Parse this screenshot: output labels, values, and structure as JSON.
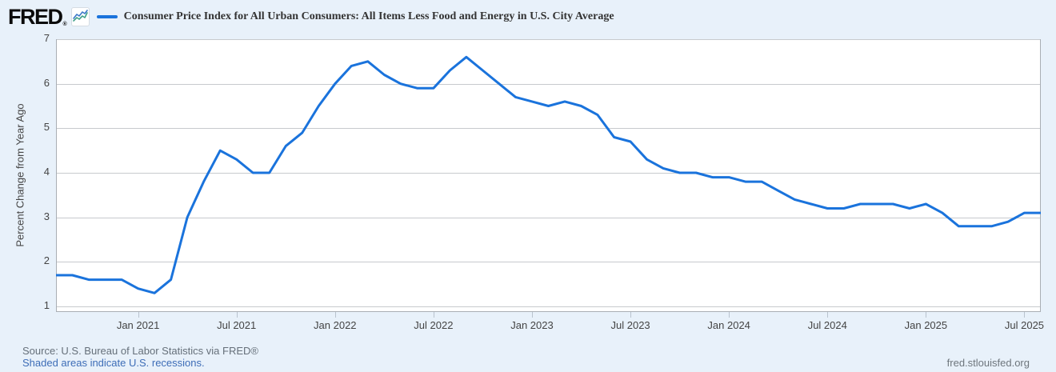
{
  "header": {
    "logo_text": "FRED",
    "registered_mark": "®",
    "title": "Consumer Price Index for All Urban Consumers: All Items Less Food and Energy in U.S. City Average"
  },
  "chart_data": {
    "type": "line",
    "title": "Consumer Price Index for All Urban Consumers: All Items Less Food and Energy in U.S. City Average",
    "ylabel": "Percent Change from Year Ago",
    "xlabel": "",
    "line_color": "#1a73dc",
    "grid": "horizontal",
    "legend_position": "top",
    "ylim": [
      0.87,
      7
    ],
    "y_ticks": [
      1,
      2,
      3,
      4,
      5,
      6,
      7
    ],
    "x": [
      "2020-08",
      "2020-09",
      "2020-10",
      "2020-11",
      "2020-12",
      "2021-01",
      "2021-02",
      "2021-03",
      "2021-04",
      "2021-05",
      "2021-06",
      "2021-07",
      "2021-08",
      "2021-09",
      "2021-10",
      "2021-11",
      "2021-12",
      "2022-01",
      "2022-02",
      "2022-03",
      "2022-04",
      "2022-05",
      "2022-06",
      "2022-07",
      "2022-08",
      "2022-09",
      "2022-10",
      "2022-11",
      "2022-12",
      "2023-01",
      "2023-02",
      "2023-03",
      "2023-04",
      "2023-05",
      "2023-06",
      "2023-07",
      "2023-08",
      "2023-09",
      "2023-10",
      "2023-11",
      "2023-12",
      "2024-01",
      "2024-02",
      "2024-03",
      "2024-04",
      "2024-05",
      "2024-06",
      "2024-07",
      "2024-08",
      "2024-09",
      "2024-10",
      "2024-11",
      "2024-12",
      "2025-01",
      "2025-02",
      "2025-03",
      "2025-04",
      "2025-05",
      "2025-06",
      "2025-07",
      "2025-08"
    ],
    "values": [
      1.7,
      1.7,
      1.6,
      1.6,
      1.6,
      1.4,
      1.3,
      1.6,
      3.0,
      3.8,
      4.5,
      4.3,
      4.0,
      4.0,
      4.6,
      4.9,
      5.5,
      6.0,
      6.4,
      6.5,
      6.2,
      6.0,
      5.9,
      5.9,
      6.3,
      6.6,
      6.3,
      6.0,
      5.7,
      5.6,
      5.5,
      5.6,
      5.5,
      5.3,
      4.8,
      4.7,
      4.3,
      4.1,
      4.0,
      4.0,
      3.9,
      3.9,
      3.8,
      3.8,
      3.6,
      3.4,
      3.3,
      3.2,
      3.2,
      3.3,
      3.3,
      3.3,
      3.2,
      3.3,
      3.1,
      2.8,
      2.8,
      2.8,
      2.9,
      3.1,
      3.1
    ],
    "x_ticks": [
      {
        "label": "Jan 2021",
        "index": 5
      },
      {
        "label": "Jul 2021",
        "index": 11
      },
      {
        "label": "Jan 2022",
        "index": 17
      },
      {
        "label": "Jul 2022",
        "index": 23
      },
      {
        "label": "Jan 2023",
        "index": 29
      },
      {
        "label": "Jul 2023",
        "index": 35
      },
      {
        "label": "Jan 2024",
        "index": 41
      },
      {
        "label": "Jul 2024",
        "index": 47
      },
      {
        "label": "Jan 2025",
        "index": 53
      },
      {
        "label": "Jul 2025",
        "index": 59
      }
    ]
  },
  "footer": {
    "source": "Source: U.S. Bureau of Labor Statistics via FRED®",
    "recession_note": "Shaded areas indicate U.S. recessions.",
    "site_link": "fred.stlouisfed.org"
  },
  "colors": {
    "background": "#e8f1fa",
    "plot_background": "#ffffff",
    "gridline": "#c7cacd",
    "plot_border": "#a9aeb4",
    "line": "#1a73dc",
    "link": "#3d6db7"
  }
}
